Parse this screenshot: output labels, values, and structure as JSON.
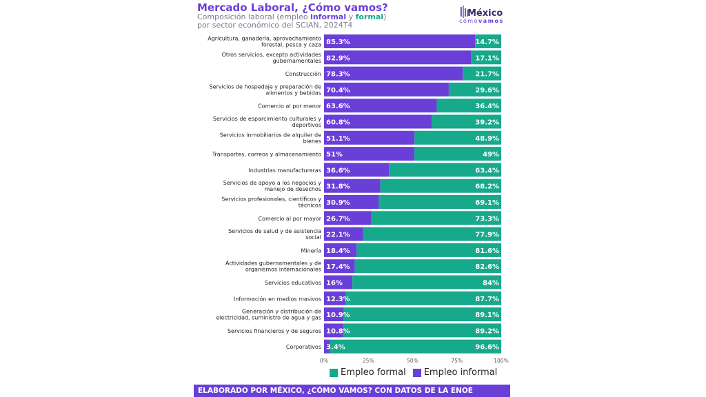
{
  "header": {
    "title": "Mercado Laboral, ¿Cómo vamos?",
    "subtitle_pre": "Composición laboral (empleo ",
    "subtitle_informal": "informal",
    "subtitle_mid": " y ",
    "subtitle_formal": "formal",
    "subtitle_post": ")",
    "subtitle_line2": "por sector económico del SCIAN, 2024T4"
  },
  "logo": {
    "word": "México",
    "sub_pre": "cómo",
    "sub_bold": "vamos"
  },
  "legend": {
    "formal": "Empleo formal",
    "informal": "Empleo informal"
  },
  "footer": {
    "text": "ELABORADO POR MÉXICO, ¿CÓMO VAMOS? CON DATOS DE LA ENOE"
  },
  "colors": {
    "informal": "#6a3fd8",
    "formal": "#16a98b"
  },
  "chart_data": {
    "type": "bar",
    "orientation": "horizontal",
    "stacked": true,
    "title": "Mercado Laboral, ¿Cómo vamos?",
    "xlabel": "",
    "ylabel": "",
    "xlim": [
      0,
      100
    ],
    "x_ticks": [
      "0%",
      "25%",
      "50%",
      "75%",
      "100%"
    ],
    "categories": [
      [
        "Agricultura, ganadería, aprovechamiento",
        "forestal, pesca y caza"
      ],
      [
        "Otros servicios, excepto actividades",
        "gubernamentales"
      ],
      [
        "Construcción"
      ],
      [
        "Servicios de hospedaje y preparación de",
        "alimentos y bebidas"
      ],
      [
        "Comercio al por menor"
      ],
      [
        "Servicios de esparcimiento culturales y",
        "deportivos"
      ],
      [
        "Servicios inmobiliarios de alquiler de",
        "bienes"
      ],
      [
        "Transportes, correos y almacenamiento"
      ],
      [
        "Industrias manufactureras"
      ],
      [
        "Servicios de apoyo a los negocios y",
        "manejo de desechos"
      ],
      [
        "Servicios profesionales, científicos y",
        "técnicos"
      ],
      [
        "Comercio al por mayor"
      ],
      [
        "Servicios de salud y de asistencia",
        "social"
      ],
      [
        "Minería"
      ],
      [
        "Actividades gubernamentales y de",
        "organismos internacionales"
      ],
      [
        "Servicios educativos"
      ],
      [
        "Información en medios masivos"
      ],
      [
        "Generación y distribución de",
        "electricidad, suministro de agua y gas"
      ],
      [
        "Servicios financieros y de seguros"
      ],
      [
        "Corporativos"
      ]
    ],
    "series": [
      {
        "name": "Empleo informal",
        "values": [
          85.3,
          82.9,
          78.3,
          70.4,
          63.6,
          60.8,
          51.1,
          51,
          36.6,
          31.8,
          30.9,
          26.7,
          22.1,
          18.4,
          17.4,
          16,
          12.3,
          10.9,
          10.8,
          3.4
        ],
        "labels": [
          "85.3%",
          "82.9%",
          "78.3%",
          "70.4%",
          "63.6%",
          "60.8%",
          "51.1%",
          "51%",
          "36.6%",
          "31.8%",
          "30.9%",
          "26.7%",
          "22.1%",
          "18.4%",
          "17.4%",
          "16%",
          "12.3%",
          "10.9%",
          "10.8%",
          "3.4%"
        ]
      },
      {
        "name": "Empleo formal",
        "values": [
          14.7,
          17.1,
          21.7,
          29.6,
          36.4,
          39.2,
          48.9,
          49,
          63.4,
          68.2,
          69.1,
          73.3,
          77.9,
          81.6,
          82.6,
          84,
          87.7,
          89.1,
          89.2,
          96.6
        ],
        "labels": [
          "14.7%",
          "17.1%",
          "21.7%",
          "29.6%",
          "36.4%",
          "39.2%",
          "48.9%",
          "49%",
          "63.4%",
          "68.2%",
          "69.1%",
          "73.3%",
          "77.9%",
          "81.6%",
          "82.6%",
          "84%",
          "87.7%",
          "89.1%",
          "89.2%",
          "96.6%"
        ]
      }
    ],
    "legend_position": "bottom-right"
  }
}
